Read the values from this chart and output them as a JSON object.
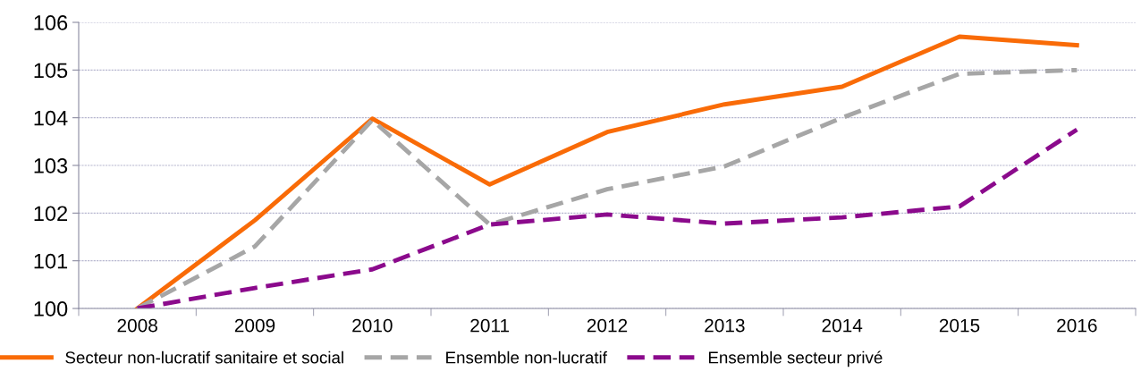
{
  "chart_data": {
    "type": "line",
    "categories": [
      "2008",
      "2009",
      "2010",
      "2011",
      "2012",
      "2013",
      "2014",
      "2015",
      "2016"
    ],
    "series": [
      {
        "name": "Secteur non-lucratif sanitaire et social",
        "color": "#f96b07",
        "line_style": "solid",
        "values": [
          100,
          101.85,
          103.98,
          102.6,
          103.7,
          104.28,
          104.65,
          105.7,
          105.52
        ]
      },
      {
        "name": "Ensemble non-lucratif",
        "color": "#a6a6a6",
        "line_style": "dashed",
        "values": [
          100,
          101.3,
          103.95,
          101.76,
          102.5,
          102.98,
          104.0,
          104.92,
          105.0
        ]
      },
      {
        "name": "Ensemble secteur privé",
        "color": "#8b0a8c",
        "line_style": "dashed",
        "values": [
          100,
          100.43,
          100.82,
          101.76,
          101.97,
          101.78,
          101.91,
          102.14,
          103.75
        ]
      }
    ],
    "ylim": [
      100,
      106
    ],
    "yticks": [
      100,
      101,
      102,
      103,
      104,
      105,
      106
    ],
    "grid": "y",
    "legend": "bottom",
    "marker": "none"
  }
}
